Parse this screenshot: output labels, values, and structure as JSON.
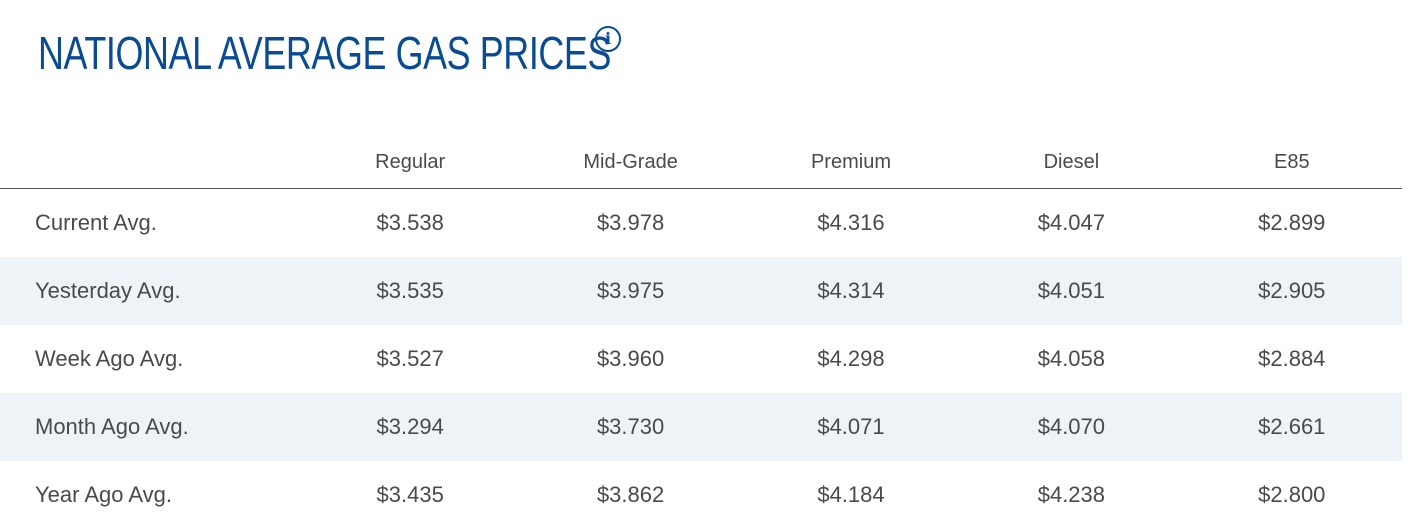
{
  "title": "NATIONAL AVERAGE GAS PRICES",
  "info_icon": "info-icon",
  "colors": {
    "title": "#0a4b93",
    "row_alt_bg": "#eef3f8",
    "text": "#4a4a4a"
  },
  "table": {
    "headers": [
      "",
      "Regular",
      "Mid-Grade",
      "Premium",
      "Diesel",
      "E85"
    ],
    "rows": [
      {
        "label": "Current Avg.",
        "values": [
          "$3.538",
          "$3.978",
          "$4.316",
          "$4.047",
          "$2.899"
        ]
      },
      {
        "label": "Yesterday Avg.",
        "values": [
          "$3.535",
          "$3.975",
          "$4.314",
          "$4.051",
          "$2.905"
        ]
      },
      {
        "label": "Week Ago Avg.",
        "values": [
          "$3.527",
          "$3.960",
          "$4.298",
          "$4.058",
          "$2.884"
        ]
      },
      {
        "label": "Month Ago Avg.",
        "values": [
          "$3.294",
          "$3.730",
          "$4.071",
          "$4.070",
          "$2.661"
        ]
      },
      {
        "label": "Year Ago Avg.",
        "values": [
          "$3.435",
          "$3.862",
          "$4.184",
          "$4.238",
          "$2.800"
        ]
      }
    ]
  }
}
